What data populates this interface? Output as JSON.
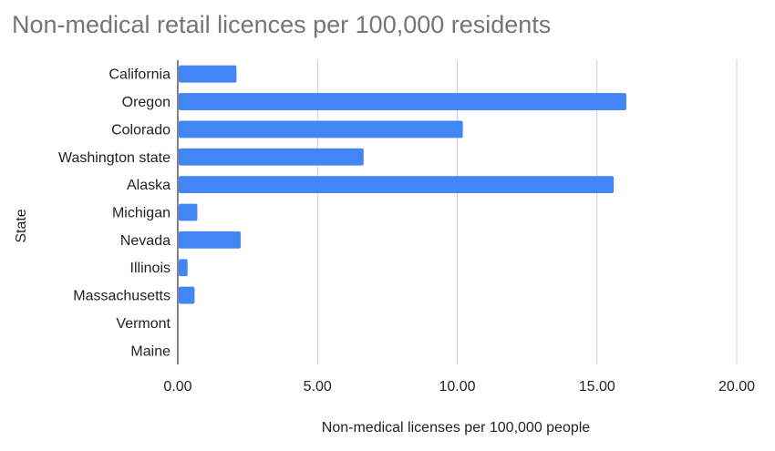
{
  "chart_data": {
    "type": "bar",
    "orientation": "horizontal",
    "title": "Non-medical retail licences per 100,000 residents",
    "xlabel": "Non-medical licenses per 100,000 people",
    "ylabel": "State",
    "categories": [
      "California",
      "Oregon",
      "Colorado",
      "Washington state",
      "Alaska",
      "Michigan",
      "Nevada",
      "Illinois",
      "Massachusetts",
      "Vermont",
      "Maine"
    ],
    "values": [
      2.1,
      16.05,
      10.2,
      6.65,
      15.6,
      0.7,
      2.25,
      0.35,
      0.6,
      0,
      0
    ],
    "xlim": [
      0,
      20
    ],
    "xticks": [
      0,
      5,
      10,
      15,
      20
    ],
    "xtick_labels": [
      "0.00",
      "5.00",
      "10.00",
      "15.00",
      "20.00"
    ],
    "bar_color": "#4285F4",
    "grid": "vertical",
    "legend": "none"
  }
}
